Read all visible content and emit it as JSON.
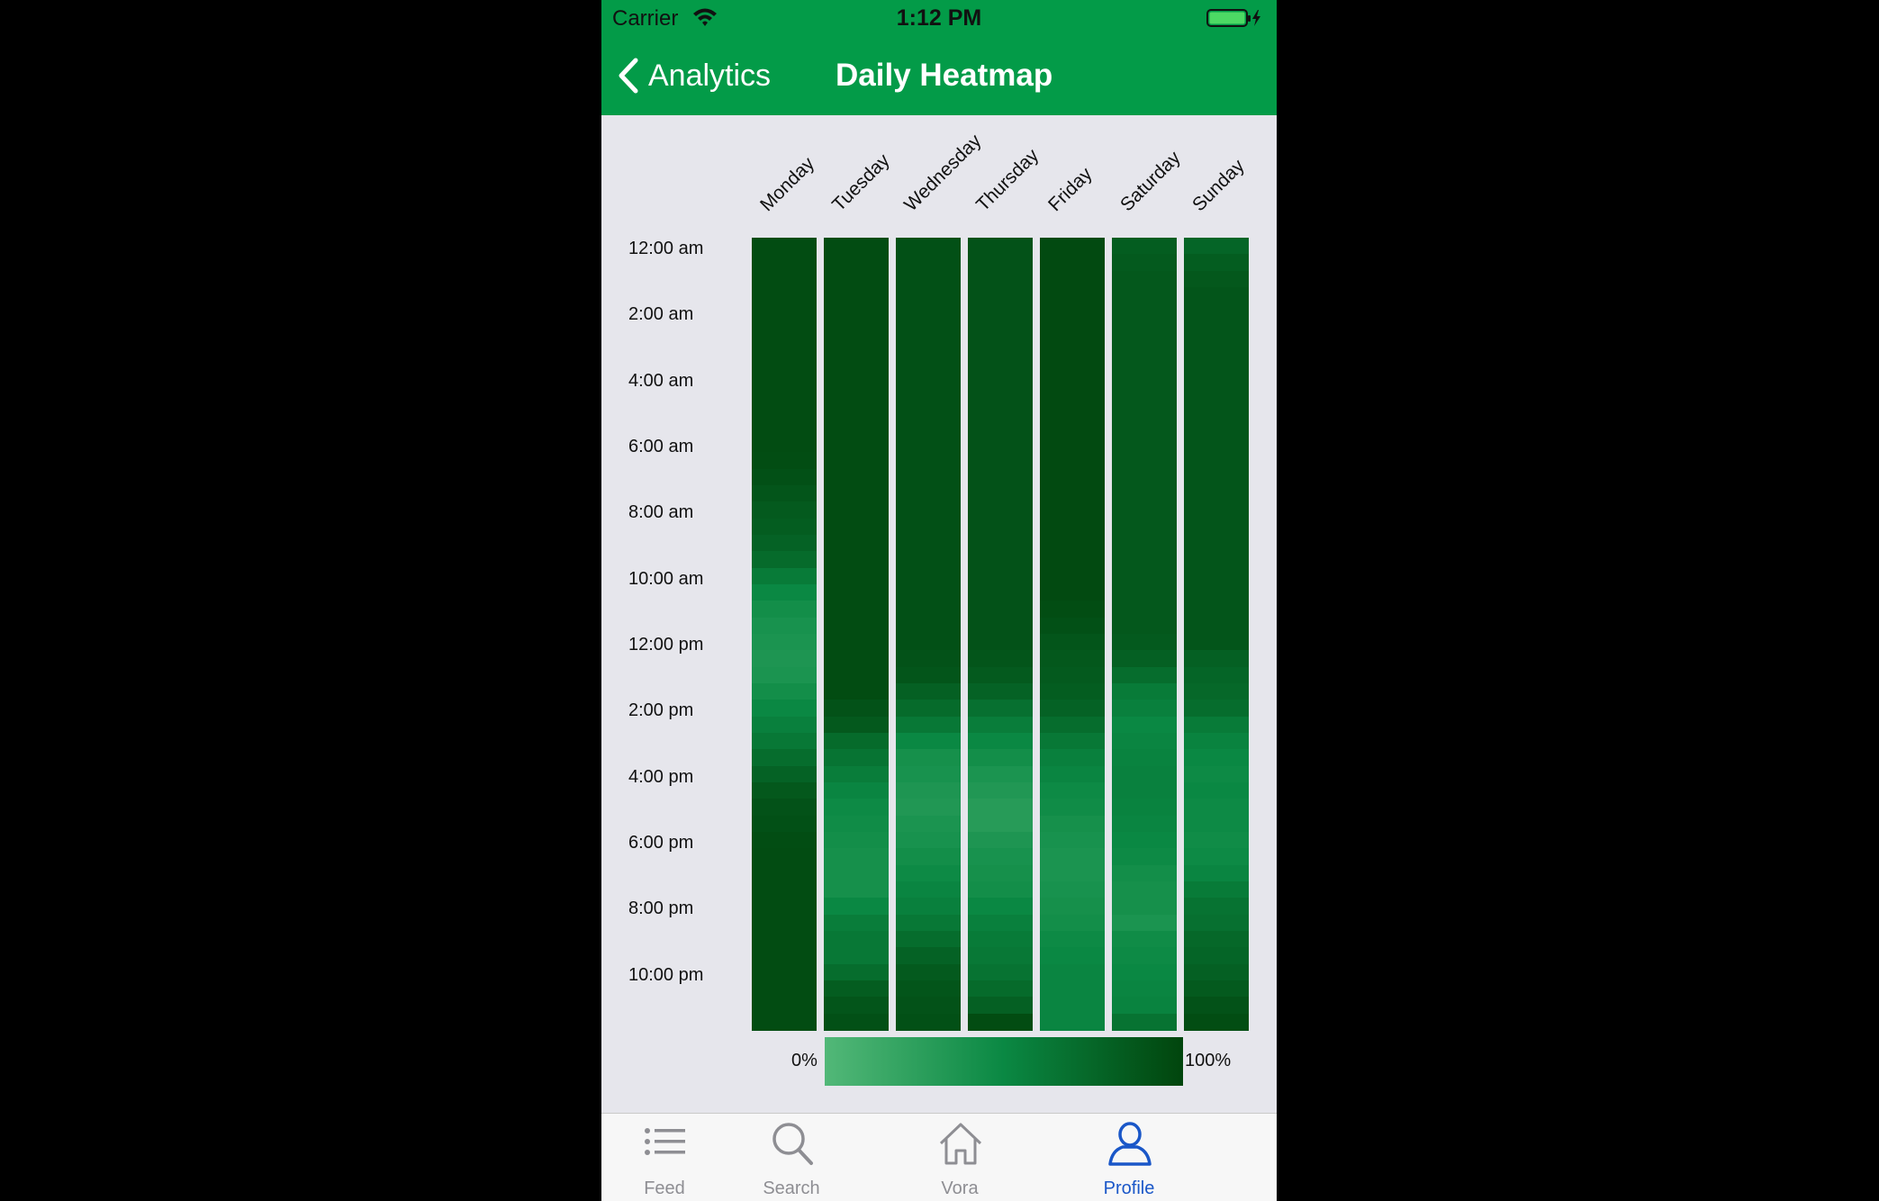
{
  "status_bar": {
    "carrier": "Carrier",
    "time": "1:12 PM"
  },
  "nav": {
    "back_label": "Analytics",
    "title": "Daily Heatmap"
  },
  "colors": {
    "header": "#039b48",
    "scale_low": "#52b878",
    "scale_high": "#01450d",
    "active_tab": "#1a57c8"
  },
  "chart_data": {
    "type": "heatmap",
    "title": "Daily Heatmap",
    "columns": [
      "Monday",
      "Tuesday",
      "Wednesday",
      "Thursday",
      "Friday",
      "Saturday",
      "Sunday"
    ],
    "row_labels": [
      "12:00 am",
      "2:00 am",
      "4:00 am",
      "6:00 am",
      "8:00 am",
      "10:00 am",
      "12:00 pm",
      "2:00 pm",
      "4:00 pm",
      "6:00 pm",
      "8:00 pm",
      "10:00 pm"
    ],
    "rows_per_day": 24,
    "scale_unit": "%",
    "scale_range": [
      0,
      100
    ],
    "values": [
      [
        95,
        95,
        95,
        95,
        95,
        95,
        95,
        95,
        95,
        95,
        95,
        95,
        95,
        94,
        92,
        88,
        84,
        82,
        78,
        72,
        60,
        50,
        44,
        40,
        38,
        36,
        38,
        44,
        50,
        56,
        62,
        70,
        78,
        86,
        90,
        92,
        94,
        95,
        95,
        95,
        95,
        95,
        95,
        95,
        95,
        95,
        95,
        95
      ],
      [
        95,
        95,
        95,
        95,
        95,
        95,
        95,
        95,
        95,
        95,
        95,
        95,
        95,
        95,
        95,
        95,
        95,
        95,
        95,
        95,
        95,
        95,
        95,
        95,
        95,
        95,
        95,
        95,
        90,
        85,
        72,
        65,
        58,
        52,
        48,
        46,
        44,
        42,
        42,
        42,
        50,
        58,
        62,
        62,
        70,
        82,
        88,
        92
      ],
      [
        92,
        92,
        92,
        92,
        92,
        92,
        92,
        92,
        92,
        92,
        92,
        92,
        92,
        92,
        92,
        92,
        92,
        92,
        92,
        92,
        92,
        92,
        92,
        92,
        92,
        90,
        88,
        80,
        72,
        62,
        50,
        42,
        40,
        36,
        34,
        38,
        40,
        44,
        48,
        52,
        56,
        62,
        70,
        78,
        84,
        88,
        90,
        92
      ],
      [
        90,
        90,
        90,
        90,
        90,
        90,
        90,
        90,
        90,
        90,
        90,
        90,
        90,
        90,
        90,
        90,
        90,
        90,
        90,
        90,
        90,
        90,
        90,
        90,
        90,
        88,
        84,
        78,
        68,
        58,
        50,
        44,
        38,
        34,
        30,
        30,
        36,
        40,
        42,
        44,
        50,
        56,
        60,
        62,
        66,
        72,
        80,
        95
      ],
      [
        96,
        96,
        96,
        96,
        96,
        96,
        96,
        96,
        96,
        96,
        96,
        96,
        96,
        96,
        96,
        96,
        96,
        96,
        96,
        96,
        96,
        96,
        94,
        92,
        88,
        86,
        84,
        82,
        78,
        70,
        62,
        56,
        52,
        48,
        46,
        42,
        40,
        38,
        38,
        40,
        42,
        44,
        48,
        50,
        52,
        52,
        52,
        52
      ],
      [
        82,
        84,
        86,
        86,
        86,
        86,
        86,
        86,
        86,
        86,
        86,
        86,
        86,
        86,
        86,
        86,
        86,
        86,
        86,
        86,
        86,
        86,
        86,
        86,
        84,
        80,
        70,
        60,
        56,
        50,
        52,
        54,
        55,
        55,
        54,
        52,
        50,
        48,
        44,
        42,
        42,
        38,
        46,
        48,
        50,
        52,
        54,
        66
      ],
      [
        76,
        82,
        86,
        88,
        88,
        88,
        88,
        88,
        88,
        88,
        88,
        88,
        88,
        88,
        88,
        88,
        88,
        88,
        88,
        88,
        88,
        88,
        88,
        88,
        88,
        80,
        76,
        74,
        70,
        60,
        54,
        50,
        48,
        50,
        48,
        48,
        46,
        48,
        52,
        60,
        66,
        68,
        74,
        76,
        80,
        84,
        90,
        94
      ]
    ]
  },
  "legend": {
    "min_label": "0%",
    "max_label": "100%"
  },
  "tabs": [
    {
      "label": "Feed",
      "icon": "list-icon"
    },
    {
      "label": "Search",
      "icon": "search-icon"
    },
    {
      "label": "Vora",
      "icon": "home-icon"
    },
    {
      "label": "Profile",
      "icon": "person-icon",
      "active": true
    }
  ]
}
